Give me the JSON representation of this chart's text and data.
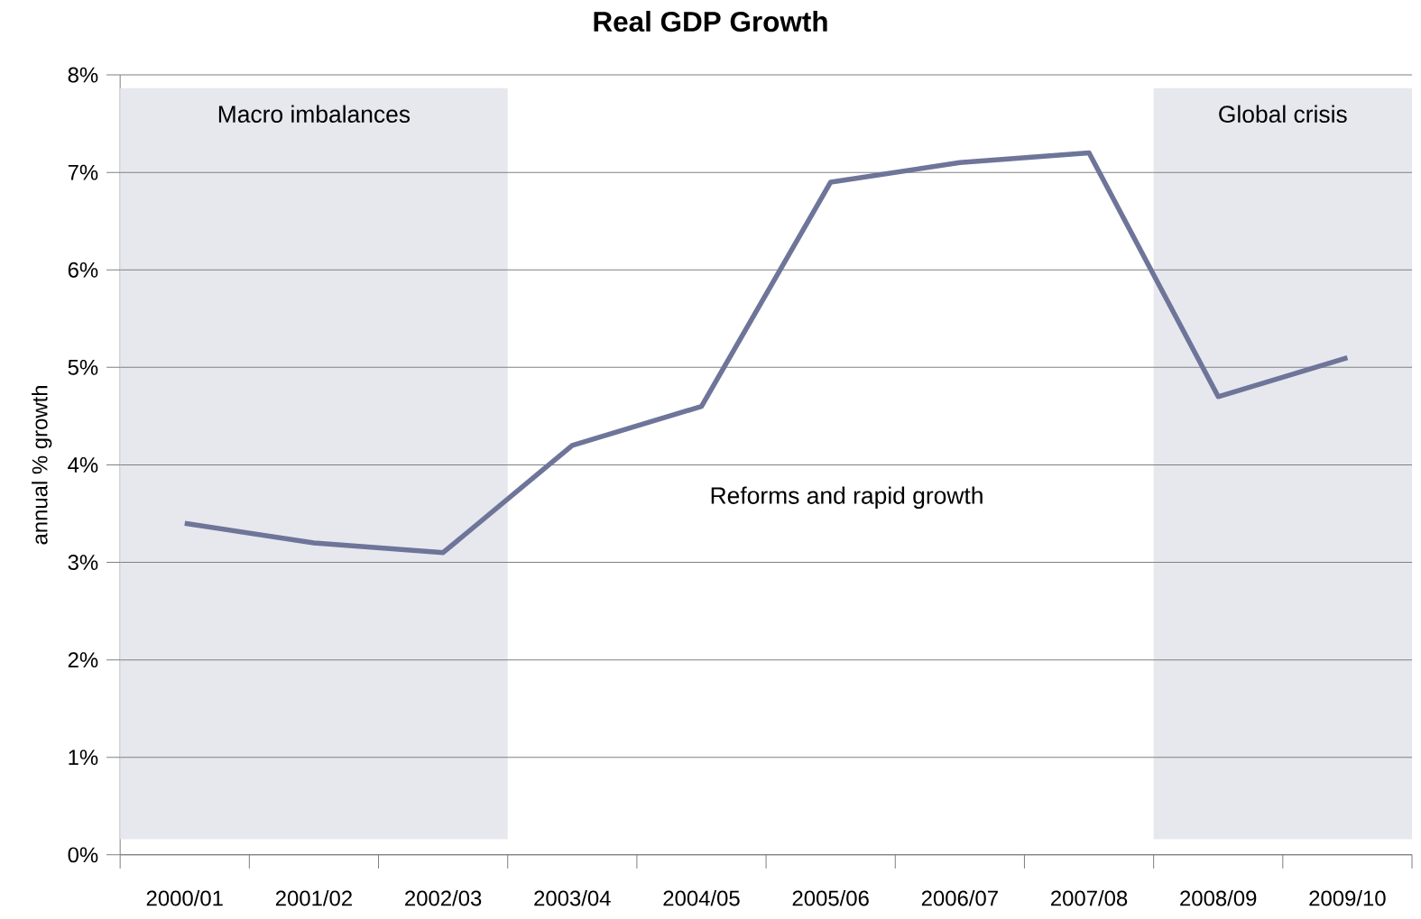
{
  "chart_data": {
    "type": "line",
    "title": "Real GDP Growth",
    "ylabel": "annual % growth",
    "categories": [
      "2000/01",
      "2001/02",
      "2002/03",
      "2003/04",
      "2004/05",
      "2005/06",
      "2006/07",
      "2007/08",
      "2008/09",
      "2009/10"
    ],
    "series": [
      {
        "color": "#6e7599",
        "values": [
          3.4,
          3.2,
          3.1,
          4.2,
          4.6,
          6.9,
          7.1,
          7.2,
          4.7,
          5.1
        ]
      }
    ],
    "ylim": [
      0,
      8
    ],
    "yticks": [
      {
        "value": 0,
        "label": "0%"
      },
      {
        "value": 1,
        "label": "1%"
      },
      {
        "value": 2,
        "label": "2%"
      },
      {
        "value": 3,
        "label": "3%"
      },
      {
        "value": 4,
        "label": "4%"
      },
      {
        "value": 5,
        "label": "5%"
      },
      {
        "value": 6,
        "label": "6%"
      },
      {
        "value": 7,
        "label": "7%"
      },
      {
        "value": 8,
        "label": "8%"
      }
    ],
    "bands": [
      {
        "axis": "x",
        "from": "2000/01",
        "to": "2002/03",
        "label": "Macro imbalances",
        "color": "#e7e8ee"
      },
      {
        "axis": "x",
        "from": "2008/09",
        "to": "2009/10",
        "label": "Global crisis",
        "color": "#e7e8ee"
      }
    ],
    "annotations": [
      "Reforms and rapid growth"
    ],
    "grid": "y",
    "marker": "none",
    "line_style": "solid"
  }
}
